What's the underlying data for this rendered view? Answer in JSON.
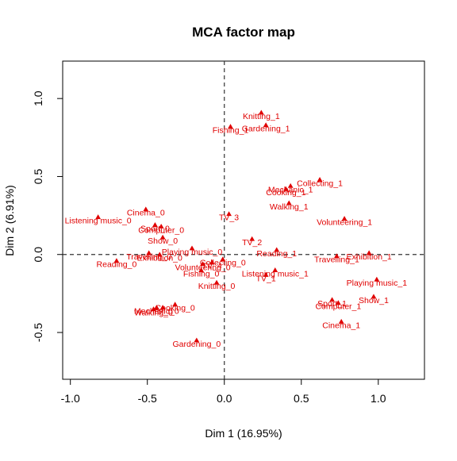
{
  "chart_data": {
    "type": "scatter",
    "title": "MCA factor map",
    "xlabel": "Dim 1 (16.95%)",
    "ylabel": "Dim 2 (6.91%)",
    "xlim": [
      -1.05,
      1.3
    ],
    "ylim": [
      -0.8,
      1.24
    ],
    "xticks": [
      "-1.0",
      "-0.5",
      "0.0",
      "0.5",
      "1.0"
    ],
    "yticks": [
      "-0.5",
      "0.0",
      "0.5",
      "1.0"
    ],
    "reference_lines": {
      "x": 0,
      "y": 0,
      "style": "dashed"
    },
    "grid": false,
    "marker": "triangle",
    "color": "#e00000",
    "points": [
      {
        "label": "Knitting_1",
        "x": 0.24,
        "y": 0.91
      },
      {
        "label": "Gardening_1",
        "x": 0.27,
        "y": 0.83
      },
      {
        "label": "Fishing_1",
        "x": 0.04,
        "y": 0.82
      },
      {
        "label": "Collecting_1",
        "x": 0.62,
        "y": 0.48
      },
      {
        "label": "Mechanic_1",
        "x": 0.43,
        "y": 0.44
      },
      {
        "label": "Cooking_1",
        "x": 0.4,
        "y": 0.42
      },
      {
        "label": "Walking_1",
        "x": 0.42,
        "y": 0.33
      },
      {
        "label": "Volunteering_1",
        "x": 0.78,
        "y": 0.23
      },
      {
        "label": "TV_3",
        "x": 0.03,
        "y": 0.26
      },
      {
        "label": "Cinema_0",
        "x": -0.51,
        "y": 0.29
      },
      {
        "label": "Listening music_0",
        "x": -0.82,
        "y": 0.24
      },
      {
        "label": "Sport_0",
        "x": -0.45,
        "y": 0.19
      },
      {
        "label": "Computer_0",
        "x": -0.41,
        "y": 0.18
      },
      {
        "label": "Show_0",
        "x": -0.4,
        "y": 0.11
      },
      {
        "label": "TV_2",
        "x": 0.18,
        "y": 0.1
      },
      {
        "label": "Playing music_0",
        "x": -0.21,
        "y": 0.04
      },
      {
        "label": "Reading_1",
        "x": 0.34,
        "y": 0.03
      },
      {
        "label": "Exhibition_1",
        "x": 0.94,
        "y": 0.01
      },
      {
        "label": "Travelling_1",
        "x": 0.73,
        "y": -0.01
      },
      {
        "label": "Travelling_0",
        "x": -0.49,
        "y": 0.01
      },
      {
        "label": "Exhibition_0",
        "x": -0.42,
        "y": 0.0
      },
      {
        "label": "Reading_0",
        "x": -0.7,
        "y": -0.04
      },
      {
        "label": "Volunteering_0",
        "x": -0.14,
        "y": -0.06
      },
      {
        "label": "TV_4",
        "x": -0.08,
        "y": -0.05
      },
      {
        "label": "Collecting_0",
        "x": -0.01,
        "y": -0.03
      },
      {
        "label": "Fishing_0",
        "x": -0.15,
        "y": -0.1
      },
      {
        "label": "TV_1",
        "x": 0.27,
        "y": -0.13
      },
      {
        "label": "Listening music_1",
        "x": 0.33,
        "y": -0.1
      },
      {
        "label": "Knitting_0",
        "x": -0.05,
        "y": -0.18
      },
      {
        "label": "Playing music_1",
        "x": 0.99,
        "y": -0.16
      },
      {
        "label": "Show_1",
        "x": 0.97,
        "y": -0.27
      },
      {
        "label": "Sport_1",
        "x": 0.7,
        "y": -0.29
      },
      {
        "label": "Computer_1",
        "x": 0.74,
        "y": -0.31
      },
      {
        "label": "Cinema_1",
        "x": 0.76,
        "y": -0.43
      },
      {
        "label": "Mechanic_0",
        "x": -0.44,
        "y": -0.34
      },
      {
        "label": "Cooking_0",
        "x": -0.32,
        "y": -0.32
      },
      {
        "label": "Walking_0",
        "x": -0.46,
        "y": -0.35
      },
      {
        "label": "TV_0",
        "x": -0.4,
        "y": -0.34
      },
      {
        "label": "Gardening_0",
        "x": -0.18,
        "y": -0.55
      }
    ]
  }
}
